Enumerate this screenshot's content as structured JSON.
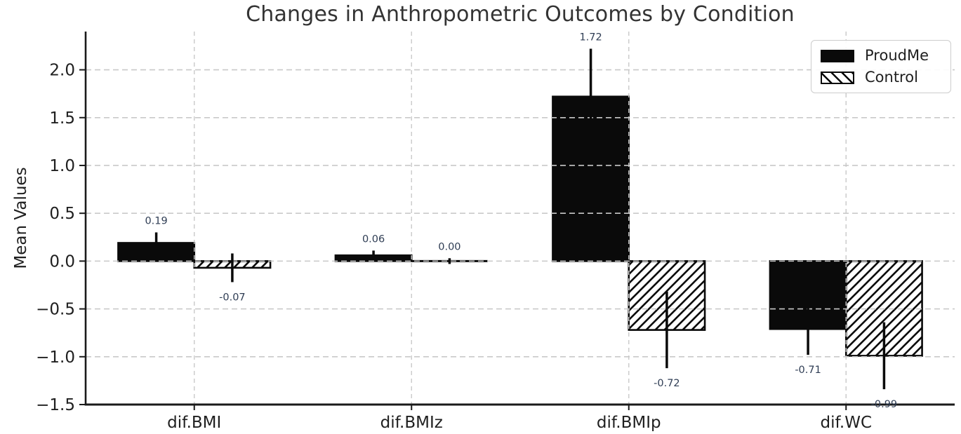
{
  "chart_data": {
    "type": "bar",
    "title": "Changes in Anthropometric Outcomes by Condition",
    "xlabel": "",
    "ylabel": "Mean Values",
    "categories": [
      "dif.BMI",
      "dif.BMIz",
      "dif.BMIp",
      "dif.WC"
    ],
    "series": [
      {
        "name": "ProudMe",
        "style": "solid-black",
        "values": [
          0.19,
          0.06,
          1.72,
          -0.71
        ],
        "errors": [
          0.11,
          0.05,
          0.5,
          0.27
        ],
        "labels": [
          "0.19",
          "0.06",
          "1.72",
          "-0.71"
        ]
      },
      {
        "name": "Control",
        "style": "white-diagonal-hatch",
        "values": [
          -0.07,
          0.0,
          -0.72,
          -0.99
        ],
        "errors": [
          0.15,
          0.03,
          0.4,
          0.35
        ],
        "labels": [
          "-0.07",
          "0.00",
          "-0.72",
          "-0.99"
        ]
      }
    ],
    "ylim": [
      -1.5,
      2.4
    ],
    "yticks": [
      2.0,
      1.5,
      1.0,
      0.5,
      0.0,
      -0.5,
      -1.0,
      -1.5
    ],
    "ytick_labels": [
      "2.0",
      "1.5",
      "1.0",
      "0.5",
      "0.0",
      "−0.5",
      "−1.0",
      "−1.5"
    ],
    "bar_width_frac": 0.35,
    "grid": "dashed horizontal at y-ticks and dashed vertical at category centers, drawn above bars",
    "legend_position": "upper right"
  },
  "legend": {
    "items": [
      {
        "label": "ProudMe",
        "swatch": "solid-black"
      },
      {
        "label": "Control",
        "swatch": "white-diagonal-hatch"
      }
    ]
  },
  "colors": {
    "bar_fill": "#0a0a0a",
    "bar_edge": "#0a0a0a",
    "grid": "#c9c9c9",
    "spine": "#1a1a1a",
    "tick_text": "#1f1f1f",
    "title_text": "#333333",
    "annotation_text": "#2f3d54",
    "background": "#ffffff",
    "legend_border": "#cccccc"
  }
}
